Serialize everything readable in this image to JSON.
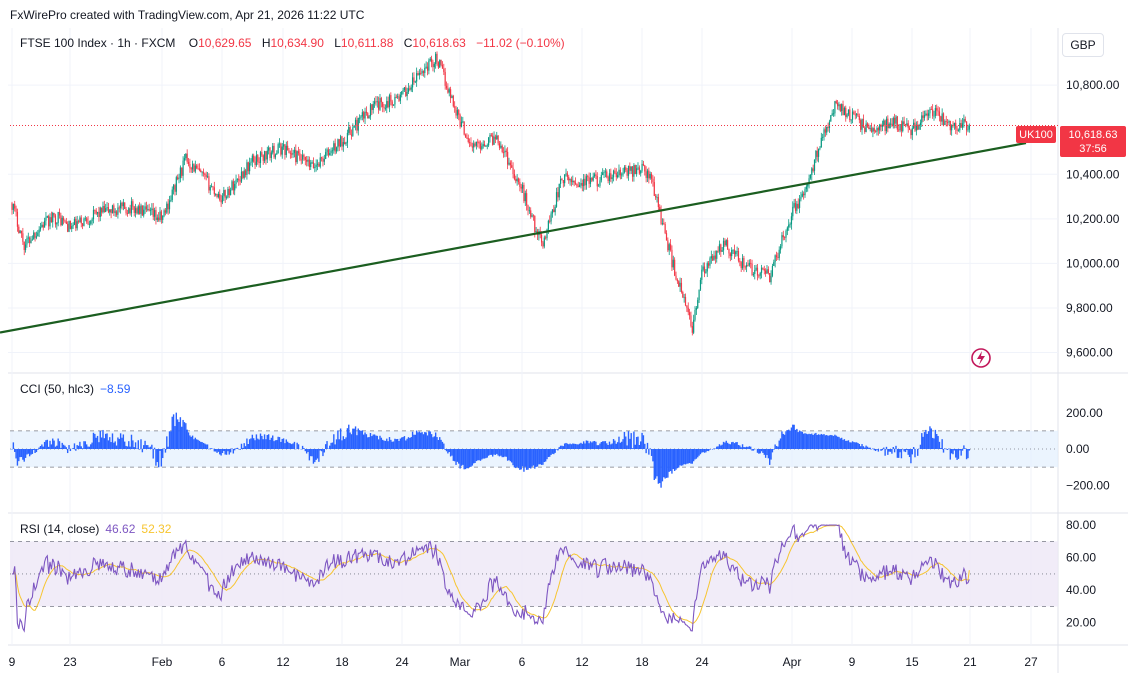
{
  "credit": "FxWirePro created with TradingView.com, Apr 21, 2026 11:22 UTC",
  "legend": {
    "symbol": "FTSE 100 Index · 1h · FXCM",
    "o_label": "O",
    "o_value": "10,629.65",
    "h_label": "H",
    "h_value": "10,634.90",
    "l_label": "L",
    "l_value": "10,611.88",
    "c_label": "C",
    "c_value": "10,618.63",
    "change": "−11.02 (−0.10%)"
  },
  "currency": "GBP",
  "price_tag": {
    "symbol": "UK100",
    "price": "10,618.63",
    "countdown": "37:56"
  },
  "cci_legend": {
    "label": "CCI (50, hlc3)",
    "value": "−8.59"
  },
  "rsi_legend": {
    "label": "RSI (14, close)",
    "value": "46.62",
    "ma_value": "52.32"
  },
  "colors": {
    "up": "#089981",
    "down": "#f23645",
    "cci": "#2962ff",
    "rsi": "#7e57c2",
    "rsi_ma": "#f7c530",
    "trendline": "#1b5e20"
  },
  "chart_data": [
    {
      "type": "candlestick",
      "title": "FTSE 100 Index · 1h · FXCM",
      "y_ticks": [
        "9,600.00",
        "9,800.00",
        "10,000.00",
        "10,200.00",
        "10,400.00",
        "10,800.00"
      ],
      "ylim": [
        9580,
        10980
      ],
      "x_ticks": [
        "9",
        "23",
        "Feb",
        "6",
        "12",
        "18",
        "24",
        "Mar",
        "6",
        "12",
        "18",
        "24",
        "Apr",
        "9",
        "15",
        "21",
        "27"
      ],
      "last_price": 10618.63,
      "close_path": [
        [
          "9",
          10270
        ],
        [
          "12",
          10080
        ],
        [
          "16",
          10170
        ],
        [
          "20",
          10210
        ],
        [
          "23",
          10160
        ],
        [
          "26",
          10230
        ],
        [
          "29",
          10250
        ],
        [
          "Feb",
          10200
        ],
        [
          "3",
          10470
        ],
        [
          "6",
          10290
        ],
        [
          "9",
          10460
        ],
        [
          "12",
          10520
        ],
        [
          "15",
          10430
        ],
        [
          "18",
          10550
        ],
        [
          "21",
          10700
        ],
        [
          "24",
          10750
        ],
        [
          "26",
          10880
        ],
        [
          "27",
          10920
        ],
        [
          "Mar",
          10640
        ],
        [
          "2",
          10520
        ],
        [
          "4",
          10570
        ],
        [
          "6",
          10330
        ],
        [
          "8",
          10080
        ],
        [
          "10",
          10380
        ],
        [
          "12",
          10360
        ],
        [
          "15",
          10390
        ],
        [
          "18",
          10430
        ],
        [
          "19",
          10370
        ],
        [
          "21",
          10010
        ],
        [
          "23",
          9710
        ],
        [
          "24",
          9950
        ],
        [
          "26",
          10090
        ],
        [
          "28",
          9980
        ],
        [
          "30",
          9940
        ],
        [
          "Apr",
          10230
        ],
        [
          "3",
          10330
        ],
        [
          "5",
          10580
        ],
        [
          "7",
          10720
        ],
        [
          "9",
          10660
        ],
        [
          "11",
          10590
        ],
        [
          "13",
          10640
        ],
        [
          "15",
          10600
        ],
        [
          "17",
          10680
        ],
        [
          "19",
          10620
        ],
        [
          "21",
          10618.63
        ]
      ],
      "trendline": {
        "from": [
          "23",
          9690
        ],
        "to": [
          "27",
          10540
        ]
      }
    },
    {
      "type": "bar",
      "title": "CCI (50, hlc3)",
      "y_ticks": [
        "200.00",
        "0.00",
        "−200.00"
      ],
      "ylim": [
        -320,
        320
      ],
      "bands": [
        100,
        -100
      ],
      "last_value": -8.59
    },
    {
      "type": "line",
      "title": "RSI (14, close)",
      "y_ticks": [
        "80.00",
        "60.00",
        "40.00",
        "20.00"
      ],
      "ylim": [
        10,
        85
      ],
      "bands": [
        70,
        50,
        30
      ],
      "last_value": 46.62,
      "ma_last_value": 52.32
    }
  ]
}
